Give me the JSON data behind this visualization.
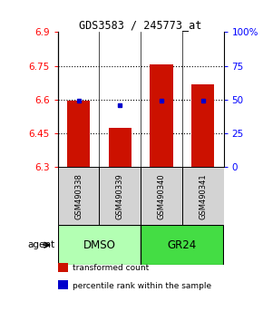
{
  "title": "GDS3583 / 245773_at",
  "samples": [
    "GSM490338",
    "GSM490339",
    "GSM490340",
    "GSM490341"
  ],
  "groups": [
    "DMSO",
    "DMSO",
    "GR24",
    "GR24"
  ],
  "bar_values": [
    6.597,
    6.473,
    6.757,
    6.668
  ],
  "percentile_values": [
    49,
    46,
    49,
    49
  ],
  "bar_base": 6.3,
  "ylim_left": [
    6.3,
    6.9
  ],
  "ylim_right": [
    0,
    100
  ],
  "yticks_left": [
    6.3,
    6.45,
    6.6,
    6.75,
    6.9
  ],
  "yticks_right": [
    0,
    25,
    50,
    75,
    100
  ],
  "ytick_labels_right": [
    "0",
    "25",
    "50",
    "75",
    "100%"
  ],
  "bar_color": "#cc1100",
  "marker_color": "#0000cc",
  "group_colors": {
    "DMSO": "#b3ffb3",
    "GR24": "#44dd44"
  },
  "legend_items": [
    {
      "label": "transformed count",
      "color": "#cc1100"
    },
    {
      "label": "percentile rank within the sample",
      "color": "#0000cc"
    }
  ],
  "bar_width": 0.55,
  "sample_box_color": "#d3d3d3",
  "agent_label": "agent"
}
